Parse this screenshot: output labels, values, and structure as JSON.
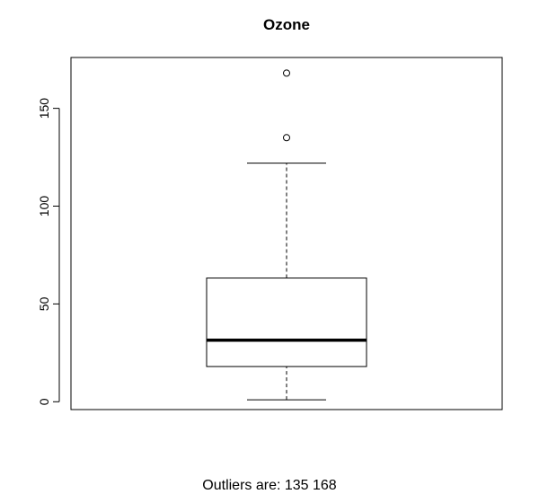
{
  "chart_data": {
    "type": "box",
    "title": "Ozone",
    "xlabel": "",
    "ylabel": "",
    "ylim": [
      -4,
      176
    ],
    "yticks": [
      0,
      50,
      100,
      150
    ],
    "grid": false,
    "box": {
      "whisker_low": 1,
      "q1": 18,
      "median": 31.5,
      "q3": 63.25,
      "whisker_high": 122,
      "outliers": [
        135,
        168
      ]
    }
  },
  "caption": "Outliers are: 135 168"
}
